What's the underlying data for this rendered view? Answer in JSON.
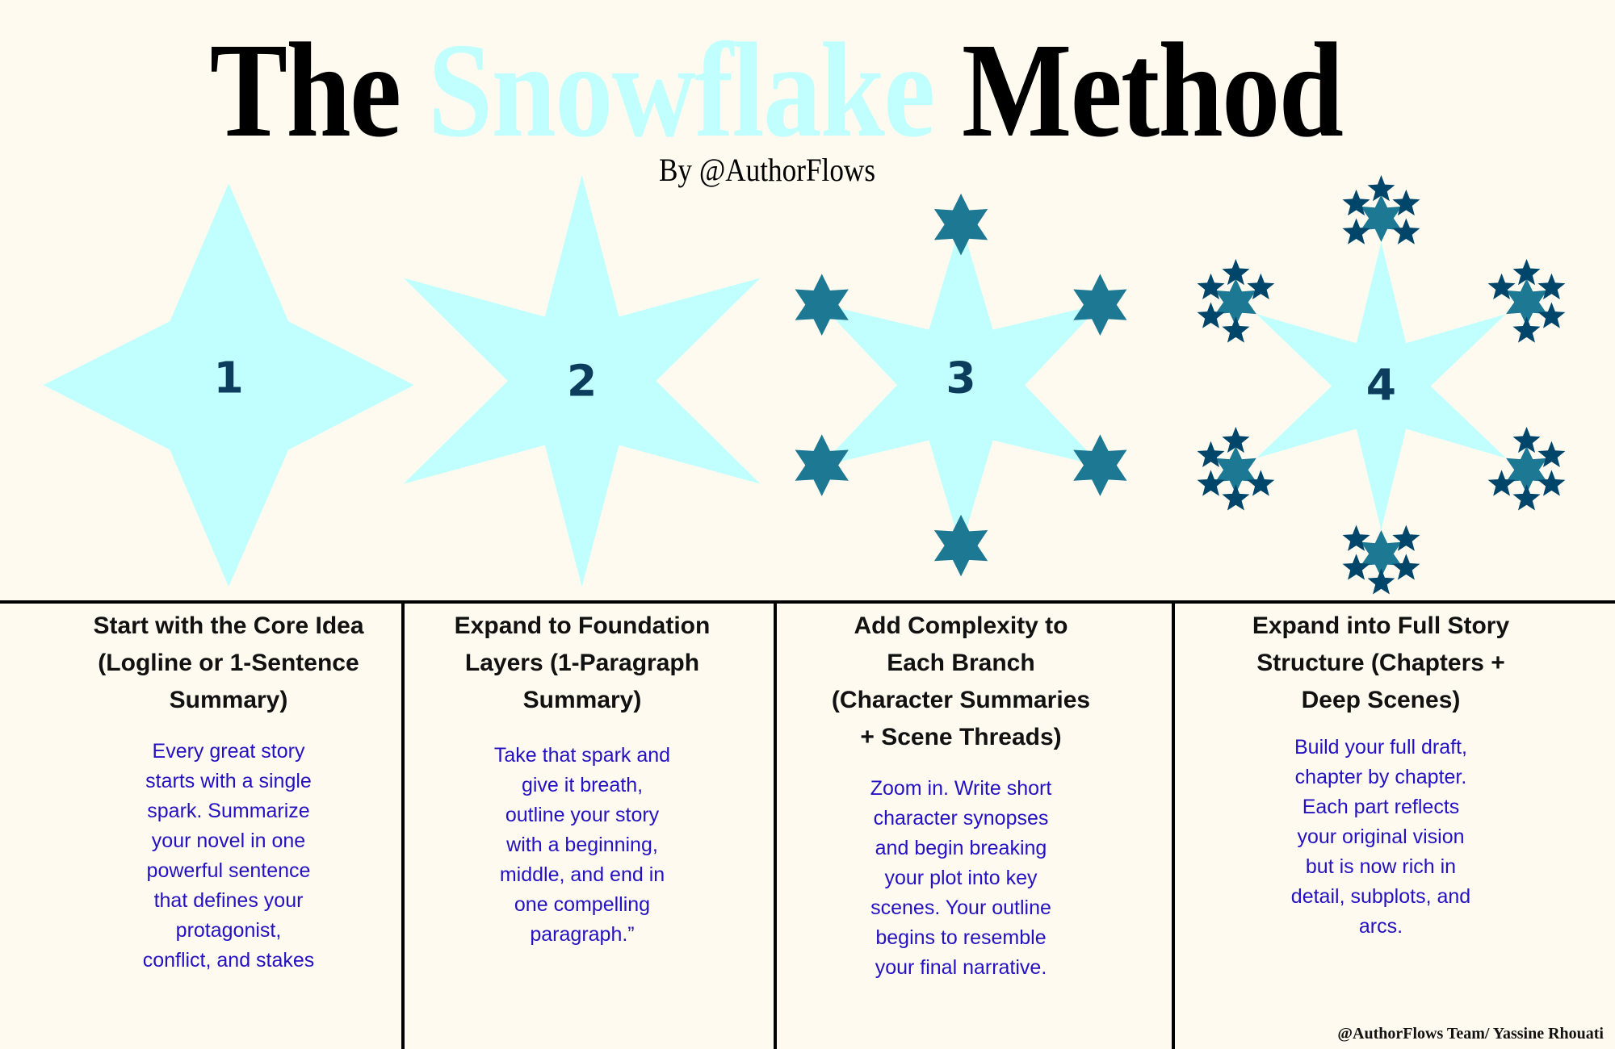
{
  "header": {
    "title_part1": "The",
    "title_accent": "Snowflake",
    "title_part2": "Method",
    "subtitle": "By @AuthorFlows"
  },
  "colors": {
    "background": "#fefaef",
    "snowflake_light": "#c1ffff",
    "branch_teal": "#1c7893",
    "branch_dark": "#00456a",
    "number": "#0d3d5c",
    "body_text": "#2412c2"
  },
  "steps": [
    {
      "number": "1",
      "shape": "4-point-star",
      "heading": [
        "Start with the Core Idea",
        "(Logline or 1-Sentence",
        "Summary)"
      ],
      "body": [
        "Every great story",
        "starts with a single",
        "spark. Summarize",
        "your novel in one",
        "powerful sentence",
        "that defines your",
        "protagonist,",
        "conflict, and stakes"
      ]
    },
    {
      "number": "2",
      "shape": "6-point-star",
      "heading": [
        "Expand to Foundation",
        "Layers (1-Paragraph",
        "Summary)"
      ],
      "body": [
        "Take that spark and",
        "give it breath,",
        "outline your story",
        "with a beginning,",
        "middle, and end in",
        "one compelling",
        "paragraph.”"
      ]
    },
    {
      "number": "3",
      "shape": "6-point-star-with-branch-stars",
      "heading": [
        "Add Complexity to",
        "Each Branch",
        "(Character Summaries",
        "+ Scene Threads)"
      ],
      "body": [
        "Zoom in. Write short",
        "character synopses",
        "and begin breaking",
        "your plot into key",
        "scenes. Your outline",
        "begins to resemble",
        "your final narrative."
      ]
    },
    {
      "number": "4",
      "shape": "6-point-star-with-star-clusters",
      "heading": [
        "Expand into Full Story",
        "Structure (Chapters +",
        "Deep Scenes)"
      ],
      "body": [
        "Build your full draft,",
        "chapter by chapter.",
        "Each part reflects",
        "your original vision",
        "but is now rich in",
        "detail, subplots, and",
        "arcs."
      ]
    }
  ],
  "footer": "@AuthorFlows Team/ Yassine Rhouati"
}
